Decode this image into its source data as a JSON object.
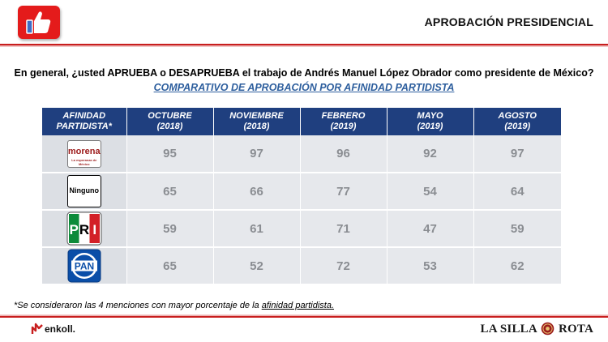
{
  "header": {
    "title": "APROBACIÓN PRESIDENCIAL"
  },
  "question": "En general, ¿usted APRUEBA o DESAPRUEBA el trabajo de Andrés Manuel López Obrador como presidente de México?",
  "subtitle": "COMPARATIVO DE APROBACIÓN POR AFINIDAD PARTIDISTA",
  "table": {
    "header_first": {
      "line1": "AFINIDAD",
      "line2": "PARTIDISTA*"
    },
    "columns": [
      {
        "line1": "OCTUBRE",
        "line2": "(2018)"
      },
      {
        "line1": "NOVIEMBRE",
        "line2": "(2018)"
      },
      {
        "line1": "FEBRERO",
        "line2": "(2019)"
      },
      {
        "line1": "MAYO",
        "line2": "(2019)"
      },
      {
        "line1": "AGOSTO",
        "line2": "(2019)"
      }
    ],
    "rows": [
      {
        "party": "morena",
        "logo_text": "morena",
        "logo_subtext": "La esperanza de México",
        "values": [
          "95",
          "97",
          "96",
          "92",
          "97"
        ]
      },
      {
        "party": "ninguno",
        "logo_text": "Ninguno",
        "values": [
          "65",
          "66",
          "77",
          "54",
          "64"
        ]
      },
      {
        "party": "pri",
        "logo_text": "PRI",
        "values": [
          "59",
          "61",
          "71",
          "47",
          "59"
        ]
      },
      {
        "party": "pan",
        "logo_text": "PAN",
        "values": [
          "65",
          "52",
          "72",
          "53",
          "62"
        ]
      }
    ]
  },
  "footnote": {
    "prefix": "*Se consideraron las 4 menciones con mayor porcentaje de la ",
    "link": "afinidad partidista."
  },
  "footer": {
    "left_brand": "enkoll.",
    "right_brand_left": "LA SILLA",
    "right_brand_right": "ROTA"
  },
  "colors": {
    "accent_red": "#c81e1e",
    "table_header": "#1f3f7f",
    "subtitle_blue": "#2e5f9e",
    "cell_bg": "#e6e8ec",
    "value_text": "#8a8d92"
  },
  "icons": [
    "thumbs-up-icon",
    "enkoll-logo-icon",
    "la-silla-rota-seal-icon"
  ]
}
